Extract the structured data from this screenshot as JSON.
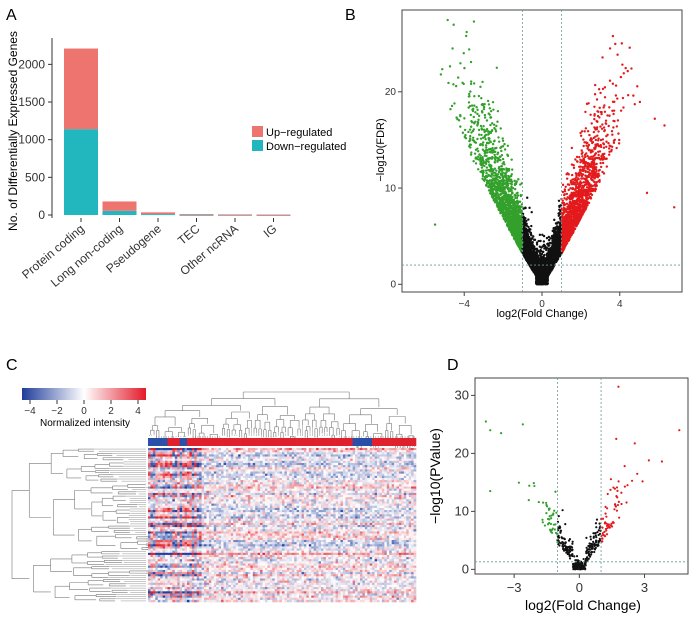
{
  "colors": {
    "up": "#EE7470",
    "down": "#22B7BF",
    "green": "#33A02C",
    "red": "#E31A1C",
    "black": "#111111",
    "heat_low": "#2040A0",
    "heat_mid": "#FFFFFF",
    "heat_high": "#E0202C",
    "gray_tick": "#555555",
    "dotted": "#6A9A9A"
  },
  "chart_data": [
    {
      "panel": "A",
      "type": "bar",
      "stacked": true,
      "categories": [
        "Protein coding",
        "Long non-coding",
        "Pseudogene",
        "TEC",
        "Other ncRNA",
        "IG"
      ],
      "series": [
        {
          "name": "Down−regulated",
          "values": [
            1140,
            55,
            12,
            3,
            3,
            2
          ]
        },
        {
          "name": "Up−regulated",
          "values": [
            1070,
            125,
            23,
            9,
            5,
            4
          ]
        }
      ],
      "yticks": [
        0,
        500,
        1000,
        1500,
        2000
      ],
      "ylim": [
        0,
        2350
      ],
      "ylabel": "No. of Differentially Expressed Genes",
      "xlabel": "",
      "legend_position": "right"
    },
    {
      "panel": "B",
      "type": "scatter",
      "title": "",
      "xlabel": "log2(Fold Change)",
      "ylabel": "−log10(FDR)",
      "xlim": [
        -7.2,
        7.2
      ],
      "ylim": [
        -0.8,
        28.5
      ],
      "xticks": [
        -4,
        0,
        4
      ],
      "xtick_labels": [
        "−4",
        "0",
        "4"
      ],
      "yticks": [
        0,
        10,
        20
      ],
      "fc_threshold": [
        -1,
        1
      ],
      "sig_threshold": 2,
      "point_groups": {
        "down": {
          "count": 900,
          "color": "green"
        },
        "up": {
          "count": 1200,
          "color": "red"
        },
        "ns": {
          "count": 4200,
          "color": "black"
        }
      },
      "highlights": [
        {
          "x": -3.5,
          "y": 27.3
        },
        {
          "x": -3.9,
          "y": 25.8
        },
        {
          "x": -4.6,
          "y": 24.5
        },
        {
          "x": -5.2,
          "y": 21.8
        },
        {
          "x": 5.8,
          "y": 17.2
        },
        {
          "x": 6.3,
          "y": 16.5
        },
        {
          "x": 5.4,
          "y": 9.5
        },
        {
          "x": 6.8,
          "y": 8.0
        },
        {
          "x": -5.5,
          "y": 6.2
        }
      ]
    },
    {
      "panel": "C",
      "type": "heatmap",
      "colorbar_ticks": [
        "−4",
        "−2",
        "0",
        "2",
        "4"
      ],
      "colorbar_label": "Normalized intensity",
      "value_range": [
        -5,
        5
      ],
      "rows": 72,
      "cols": 110,
      "sample_group_labels": []
    },
    {
      "panel": "D",
      "type": "scatter",
      "xlabel": "log2(Fold Change)",
      "ylabel": "−log10(PValue)",
      "xlim": [
        -4.8,
        5.0
      ],
      "ylim": [
        -0.8,
        33.0
      ],
      "xticks": [
        -3,
        0,
        3
      ],
      "xtick_labels": [
        "−3",
        "0",
        "3"
      ],
      "yticks": [
        0,
        10,
        20,
        30
      ],
      "fc_threshold": [
        -1,
        1
      ],
      "sig_threshold": 1.3,
      "highlights": [
        {
          "x": 1.8,
          "y": 31.5
        },
        {
          "x": -4.3,
          "y": 25.5
        },
        {
          "x": -3.6,
          "y": 23.5
        },
        {
          "x": -2.6,
          "y": 25.0
        },
        {
          "x": -4.1,
          "y": 24.0
        },
        {
          "x": 4.6,
          "y": 24.0
        },
        {
          "x": 3.2,
          "y": 18.8
        },
        {
          "x": 3.8,
          "y": 18.6
        },
        {
          "x": -4.1,
          "y": 13.5
        },
        {
          "x": 1.7,
          "y": 22.5
        }
      ]
    }
  ],
  "panel_labels": [
    "A",
    "B",
    "C",
    "D"
  ]
}
